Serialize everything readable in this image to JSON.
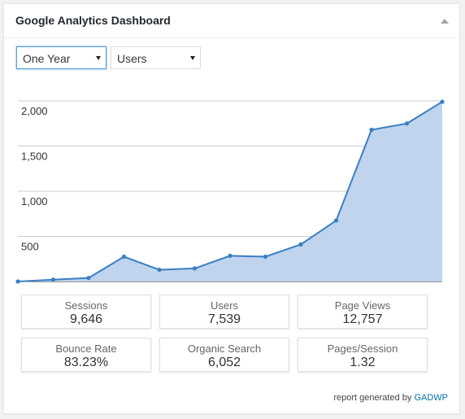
{
  "widget": {
    "title": "Google Analytics Dashboard"
  },
  "controls": {
    "period": "One Year",
    "metric": "Users"
  },
  "chart_data": {
    "type": "area",
    "title": "",
    "xlabel": "",
    "ylabel": "",
    "x": [
      1,
      2,
      3,
      4,
      5,
      6,
      7,
      8,
      9,
      10,
      11,
      12,
      13
    ],
    "series": [
      {
        "values": [
          0,
          20,
          40,
          275,
          130,
          145,
          285,
          275,
          410,
          675,
          1680,
          1750,
          1990
        ]
      }
    ],
    "ylim": [
      0,
      2000
    ],
    "yticks": [
      500,
      1000,
      1500,
      2000
    ],
    "ytick_labels": [
      "500",
      "1,000",
      "1,500",
      "2,000"
    ],
    "grid": true,
    "colors": {
      "line": "#3a7fc4",
      "fill": "#c0d4ee"
    }
  },
  "stats": [
    {
      "label": "Sessions",
      "value": "9,646"
    },
    {
      "label": "Users",
      "value": "7,539"
    },
    {
      "label": "Page Views",
      "value": "12,757"
    },
    {
      "label": "Bounce Rate",
      "value": "83.23%"
    },
    {
      "label": "Organic Search",
      "value": "6,052"
    },
    {
      "label": "Pages/Session",
      "value": "1.32"
    }
  ],
  "footer": {
    "prefix": "report generated by ",
    "link": "GADWP"
  }
}
